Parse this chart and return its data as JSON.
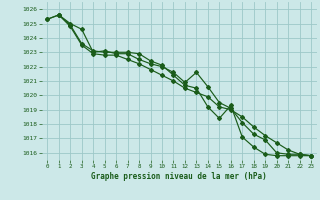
{
  "title": "Graphe pression niveau de la mer (hPa)",
  "background_color": "#cce8e8",
  "grid_color": "#9dc8c8",
  "line_color": "#1a5c1a",
  "xlim": [
    -0.5,
    23.5
  ],
  "ylim": [
    1015.5,
    1026.5
  ],
  "yticks": [
    1016,
    1017,
    1018,
    1019,
    1020,
    1021,
    1022,
    1023,
    1024,
    1025,
    1026
  ],
  "xticks": [
    0,
    1,
    2,
    3,
    4,
    5,
    6,
    7,
    8,
    9,
    10,
    11,
    12,
    13,
    14,
    15,
    16,
    17,
    18,
    19,
    20,
    21,
    22,
    23
  ],
  "series1_x": [
    0,
    1,
    2,
    3,
    4,
    5,
    6,
    7,
    8,
    9,
    10,
    11,
    12,
    13,
    14,
    15,
    16,
    17,
    18,
    19,
    20,
    21,
    22,
    23
  ],
  "series1_y": [
    1025.3,
    1025.6,
    1025.0,
    1024.6,
    1023.0,
    1023.1,
    1022.9,
    1022.9,
    1022.5,
    1022.2,
    1022.0,
    1021.6,
    1020.9,
    1021.6,
    1020.6,
    1019.5,
    1019.1,
    1018.1,
    1017.3,
    1016.9,
    1016.0,
    1015.9,
    1015.9,
    1015.8
  ],
  "series2_x": [
    1,
    2,
    3,
    4,
    5,
    6,
    7,
    8,
    9,
    10,
    11,
    12,
    13,
    14,
    15,
    16,
    17,
    18,
    19,
    20,
    21,
    22,
    23
  ],
  "series2_y": [
    1025.6,
    1024.8,
    1023.5,
    1022.9,
    1022.8,
    1022.8,
    1022.5,
    1022.2,
    1021.8,
    1021.4,
    1021.0,
    1020.5,
    1020.2,
    1019.9,
    1019.2,
    1019.0,
    1018.5,
    1017.8,
    1017.2,
    1016.7,
    1016.2,
    1015.9,
    1015.8
  ],
  "series3_x": [
    0,
    1,
    2,
    3,
    4,
    5,
    6,
    7,
    8,
    9,
    10,
    11,
    12,
    13,
    14,
    15,
    16,
    17,
    18,
    19,
    20,
    21,
    22,
    23
  ],
  "series3_y": [
    1025.3,
    1025.6,
    1024.9,
    1023.6,
    1023.1,
    1023.0,
    1023.0,
    1023.0,
    1022.9,
    1022.4,
    1022.1,
    1021.4,
    1020.7,
    1020.5,
    1019.2,
    1018.4,
    1019.3,
    1017.1,
    1016.4,
    1015.9,
    1015.8,
    1015.8,
    1015.8,
    1015.8
  ]
}
